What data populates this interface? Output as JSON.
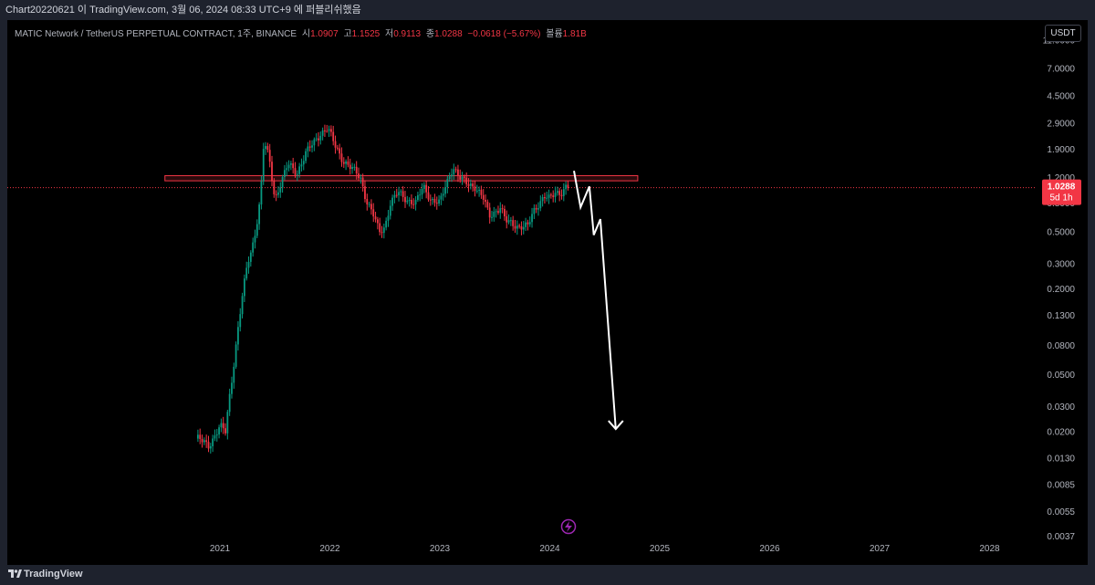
{
  "header": {
    "caption": "Chart20220621 이 TradingView.com, 3월 06, 2024 08:33 UTC+9 에 퍼블리쉬했음"
  },
  "legend": {
    "symbol": "MATIC Network / TetherUS PERPETUAL CONTRACT, 1주, BINANCE",
    "open_label": "시",
    "open": "1.0907",
    "high_label": "고",
    "high": "1.1525",
    "low_label": "저",
    "low": "0.9113",
    "close_label": "종",
    "close": "1.0288",
    "change": "−0.0618 (−5.67%)",
    "volume_label": "볼륨",
    "volume": "1.81B"
  },
  "currency_button": "USDT",
  "price_badge": {
    "price": "1.0288",
    "countdown": "5d 1h"
  },
  "footer": {
    "brand": "TradingView"
  },
  "colors": {
    "up": "#089981",
    "down": "#f23645",
    "axis_text": "#b2b5be",
    "zone": "#f23645",
    "arrow": "#ffffff",
    "lightning": "#9c27b0"
  },
  "chart_data": {
    "type": "candlestick",
    "y_scale": "log",
    "y_ticks": [
      "11.0000",
      "7.0000",
      "4.5000",
      "2.9000",
      "1.9000",
      "1.2000",
      "0.8000",
      "0.5000",
      "0.3000",
      "0.2000",
      "0.1300",
      "0.0800",
      "0.0500",
      "0.0300",
      "0.0200",
      "0.0130",
      "0.0085",
      "0.0055",
      "0.0037"
    ],
    "x_ticks": [
      "2021",
      "2022",
      "2023",
      "2024",
      "2025",
      "2026",
      "2027",
      "2028"
    ],
    "last_price": 1.0288,
    "resistance_zone": {
      "from": 1.15,
      "to": 1.25,
      "start_year": 2020.5,
      "end_year": 2024.8
    },
    "price_path": [
      [
        2020.8,
        0.018
      ],
      [
        2020.9,
        0.016
      ],
      [
        2021.0,
        0.022
      ],
      [
        2021.05,
        0.02
      ],
      [
        2021.08,
        0.032
      ],
      [
        2021.12,
        0.055
      ],
      [
        2021.16,
        0.1
      ],
      [
        2021.2,
        0.17
      ],
      [
        2021.25,
        0.3
      ],
      [
        2021.29,
        0.38
      ],
      [
        2021.33,
        0.55
      ],
      [
        2021.37,
        0.9
      ],
      [
        2021.4,
        2.2
      ],
      [
        2021.45,
        1.6
      ],
      [
        2021.5,
        0.85
      ],
      [
        2021.55,
        1.1
      ],
      [
        2021.62,
        1.5
      ],
      [
        2021.7,
        1.3
      ],
      [
        2021.78,
        1.8
      ],
      [
        2021.85,
        2.1
      ],
      [
        2021.92,
        2.5
      ],
      [
        2021.98,
        2.7
      ],
      [
        2022.05,
        2.0
      ],
      [
        2022.12,
        1.6
      ],
      [
        2022.2,
        1.4
      ],
      [
        2022.28,
        1.2
      ],
      [
        2022.33,
        0.85
      ],
      [
        2022.4,
        0.65
      ],
      [
        2022.45,
        0.5
      ],
      [
        2022.5,
        0.55
      ],
      [
        2022.55,
        0.8
      ],
      [
        2022.62,
        0.95
      ],
      [
        2022.7,
        0.85
      ],
      [
        2022.78,
        0.8
      ],
      [
        2022.85,
        1.05
      ],
      [
        2022.92,
        0.85
      ],
      [
        2023.0,
        0.8
      ],
      [
        2023.05,
        1.05
      ],
      [
        2023.12,
        1.45
      ],
      [
        2023.18,
        1.2
      ],
      [
        2023.25,
        1.1
      ],
      [
        2023.32,
        1.05
      ],
      [
        2023.4,
        0.85
      ],
      [
        2023.45,
        0.65
      ],
      [
        2023.5,
        0.7
      ],
      [
        2023.55,
        0.75
      ],
      [
        2023.6,
        0.6
      ],
      [
        2023.65,
        0.58
      ],
      [
        2023.72,
        0.55
      ],
      [
        2023.8,
        0.55
      ],
      [
        2023.85,
        0.7
      ],
      [
        2023.9,
        0.8
      ],
      [
        2023.95,
        0.9
      ],
      [
        2024.0,
        0.85
      ],
      [
        2024.05,
        0.95
      ],
      [
        2024.1,
        0.95
      ],
      [
        2024.15,
        1.05
      ],
      [
        2024.18,
        1.03
      ]
    ],
    "projection_arrow": [
      [
        2024.22,
        1.35
      ],
      [
        2024.28,
        0.75
      ],
      [
        2024.36,
        1.05
      ],
      [
        2024.4,
        0.48
      ],
      [
        2024.46,
        0.62
      ],
      [
        2024.6,
        0.021
      ]
    ]
  }
}
